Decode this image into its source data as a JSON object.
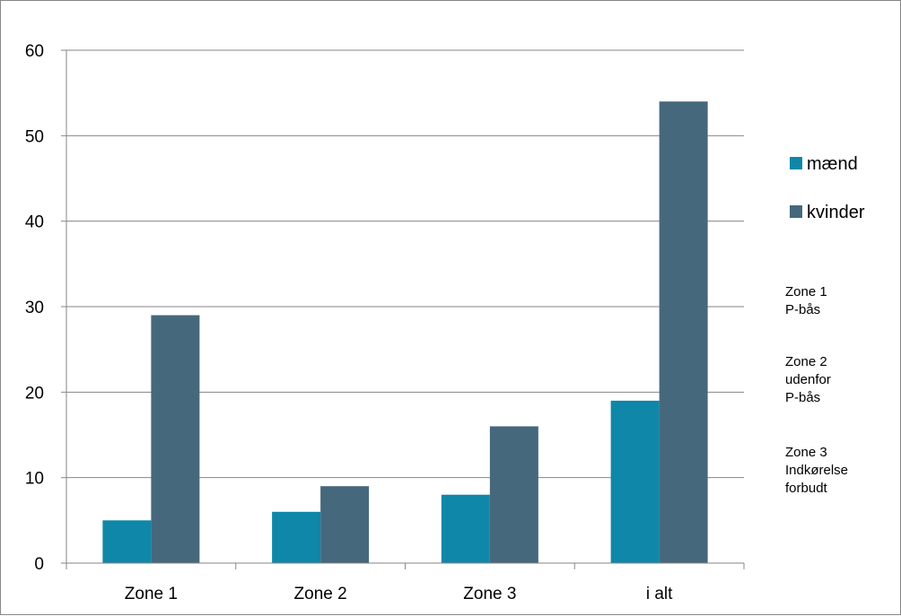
{
  "chart_data": {
    "type": "bar",
    "categories": [
      "Zone 1",
      "Zone 2",
      "Zone 3",
      "i alt"
    ],
    "series": [
      {
        "name": "mænd",
        "values": [
          5,
          6,
          8,
          19
        ],
        "color": "#0f87a8"
      },
      {
        "name": "kvinder",
        "values": [
          29,
          9,
          16,
          54
        ],
        "color": "#46687c"
      }
    ],
    "ylim": [
      0,
      60
    ],
    "yticks": [
      "0",
      "10",
      "20",
      "30",
      "40",
      "50",
      "60"
    ],
    "grid": true,
    "legend_position": "right",
    "notes": [
      {
        "lines": [
          "Zone 1",
          "P-bås"
        ]
      },
      {
        "lines": [
          "Zone 2",
          "udenfor",
          "P-bås"
        ]
      },
      {
        "lines": [
          "Zone 3",
          "Indkørelse",
          "forbudt"
        ]
      }
    ]
  }
}
